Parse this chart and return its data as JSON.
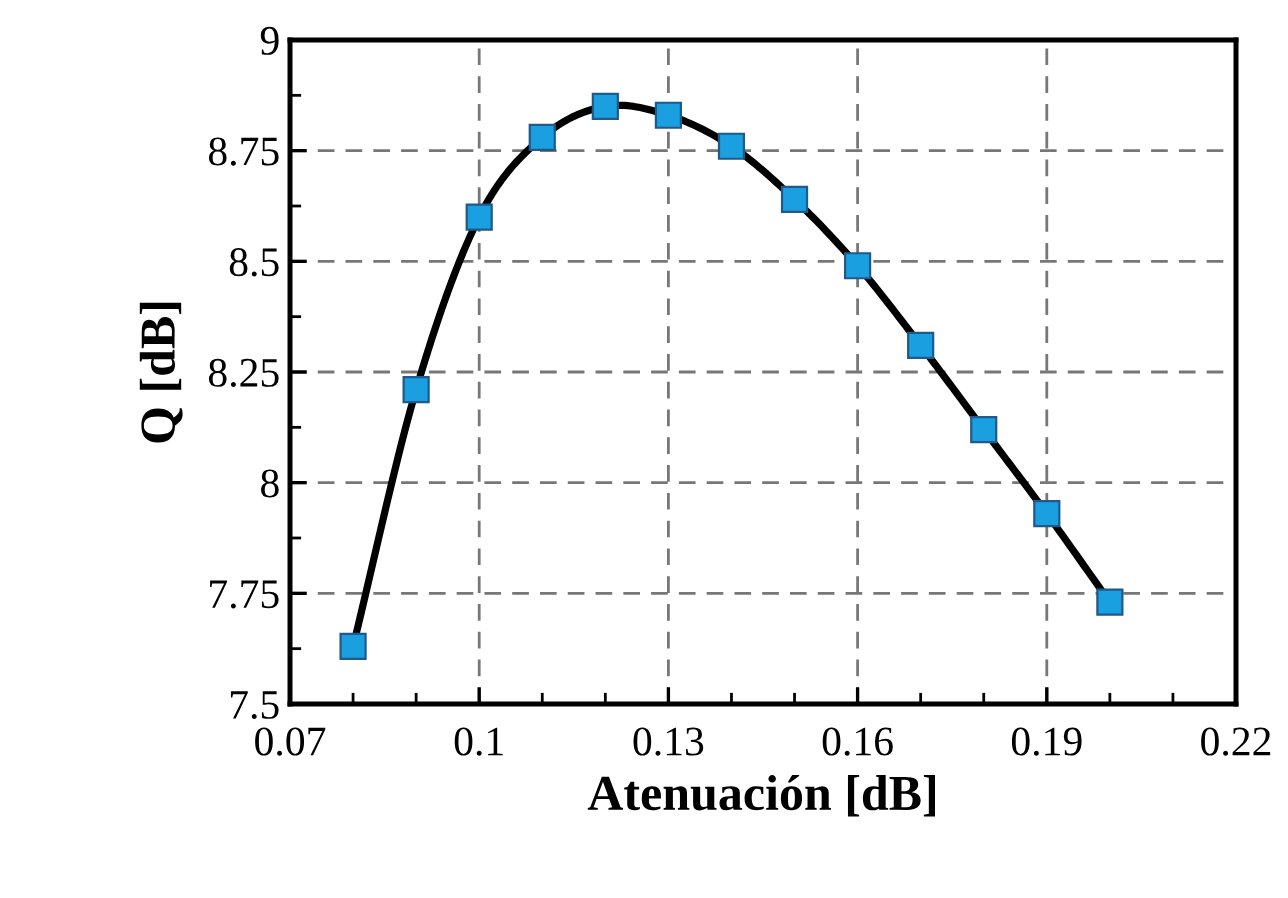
{
  "chart_data": {
    "type": "line",
    "xlabel": "Atenuación [dB]",
    "ylabel": "Q [dB]",
    "x": [
      0.08,
      0.09,
      0.1,
      0.11,
      0.12,
      0.13,
      0.14,
      0.15,
      0.16,
      0.17,
      0.18,
      0.19,
      0.2
    ],
    "series": [
      {
        "color": "#1aa0e0",
        "values": [
          7.63,
          8.21,
          8.6,
          8.78,
          8.85,
          8.83,
          8.76,
          8.64,
          8.49,
          8.31,
          8.12,
          7.93,
          7.73
        ]
      }
    ],
    "xlim": [
      0.07,
      0.22
    ],
    "xticks": [
      0.07,
      0.1,
      0.13,
      0.16,
      0.19,
      0.22
    ],
    "ylim": [
      7.5,
      9
    ],
    "yticks": [
      7.5,
      7.75,
      8,
      8.25,
      8.5,
      8.75,
      9
    ],
    "grid": true,
    "marker": "square",
    "line_style": "solid",
    "legend": false
  }
}
